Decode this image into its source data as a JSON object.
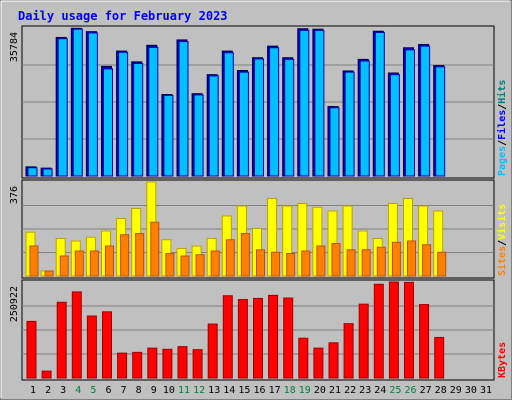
{
  "title": "Daily usage for February 2023",
  "colors": {
    "frame": "#c0c0c0",
    "panel": "#c0c0c0",
    "title": "#0000ff",
    "pages": "#00c0ff",
    "pages_edge": "#0000c0",
    "hits": "#008080",
    "files": "#0000ff",
    "visits": "#ffff00",
    "visits_edge": "#c0a000",
    "sites": "#ff8000",
    "sites_edge": "#c05000",
    "kbytes": "#ff0000",
    "kbytes_edge": "#a00000",
    "weekday_text": "#000000",
    "weekend_text": "#008040"
  },
  "chart_data": {
    "type": "bar",
    "title": "Daily usage for February 2023",
    "x": {
      "days": [
        "1",
        "2",
        "3",
        "4",
        "5",
        "6",
        "7",
        "8",
        "9",
        "10",
        "11",
        "12",
        "13",
        "14",
        "15",
        "16",
        "17",
        "18",
        "19",
        "20",
        "21",
        "22",
        "23",
        "24",
        "25",
        "26",
        "27",
        "28",
        "29",
        "30",
        "31"
      ],
      "weekend_days": [
        "4",
        "5",
        "11",
        "12",
        "18",
        "19",
        "25",
        "26"
      ]
    },
    "panels": [
      {
        "name": "hits-files-pages",
        "max_label": "35784",
        "ymax": 35784,
        "legend": [
          {
            "text": "Pages",
            "color": "#00c0ff"
          },
          {
            "text": "/",
            "color": "#000000"
          },
          {
            "text": "Files",
            "color": "#0000ff"
          },
          {
            "text": "/",
            "color": "#000000"
          },
          {
            "text": "Hits",
            "color": "#008080"
          }
        ],
        "series": [
          {
            "name": "Hits",
            "values": [
              2200,
              1900,
              33500,
              35700,
              34900,
              26500,
              30200,
              27600,
              31600,
              19700,
              32900,
              19900,
              24500,
              30200,
              25500,
              28600,
              31400,
              28600,
              35600,
              35500,
              16800,
              25400,
              28200,
              35000,
              24900,
              31000,
              31800,
              26700
            ]
          },
          {
            "name": "Pages",
            "values": [
              2000,
              1700,
              33200,
              35500,
              34600,
              25900,
              29900,
              27200,
              31100,
              19500,
              32500,
              19600,
              24200,
              29800,
              25100,
              28300,
              31000,
              28200,
              35200,
              35200,
              16500,
              25100,
              27800,
              34700,
              24500,
              30500,
              31400,
              26400
            ]
          }
        ]
      },
      {
        "name": "visits-sites",
        "max_label": "376",
        "ymax": 376,
        "legend": [
          {
            "text": "Sites",
            "color": "#ff8000"
          },
          {
            "text": "/",
            "color": "#000000"
          },
          {
            "text": "Visits",
            "color": "#ffff00"
          }
        ],
        "series": [
          {
            "name": "Visits",
            "values": [
              175,
              20,
              150,
              140,
              155,
              180,
              230,
              270,
              376,
              145,
              110,
              120,
              150,
              240,
              280,
              190,
              310,
              280,
              290,
              275,
              260,
              280,
              180,
              150,
              290,
              310,
              280,
              260
            ]
          },
          {
            "name": "Sites",
            "values": [
              120,
              20,
              80,
              100,
              100,
              120,
              165,
              170,
              215,
              90,
              80,
              85,
              100,
              145,
              170,
              105,
              95,
              90,
              100,
              120,
              130,
              105,
              105,
              115,
              135,
              140,
              125,
              95
            ]
          }
        ]
      },
      {
        "name": "kbytes",
        "max_label": "250922",
        "ymax": 250922,
        "legend": [
          {
            "text": "KBytes",
            "color": "#ff0000"
          }
        ],
        "series": [
          {
            "name": "KBytes",
            "values": [
              148000,
              18000,
              198000,
              225000,
              162000,
              173000,
              65000,
              67000,
              78000,
              75000,
              82000,
              74000,
              141000,
              215000,
              205000,
              208000,
              216000,
              209000,
              104000,
              78000,
              92000,
              142000,
              193000,
              245000,
              250922,
              250000,
              192000,
              106000
            ]
          }
        ]
      }
    ]
  }
}
